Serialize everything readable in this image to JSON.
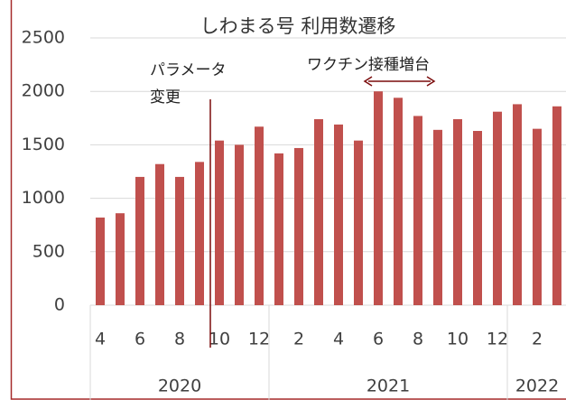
{
  "chart_data": {
    "type": "bar",
    "title": "しわまる号 利用数遷移",
    "categories": [
      "4",
      null,
      "6",
      null,
      "8",
      null,
      "10",
      null,
      "12",
      null,
      "2",
      null,
      "4",
      null,
      "6",
      null,
      "8",
      null,
      "10",
      null,
      "12",
      null,
      "2",
      null
    ],
    "values": [
      820,
      860,
      1200,
      1320,
      1200,
      1340,
      1540,
      1500,
      1670,
      1420,
      1470,
      1740,
      1690,
      1540,
      2000,
      1940,
      1770,
      1640,
      1740,
      1630,
      1810,
      1880,
      1650,
      1860
    ],
    "groups": [
      {
        "label": "2020",
        "count": 9
      },
      {
        "label": "2021",
        "count": 12
      },
      {
        "label": "2022",
        "count": 3
      }
    ],
    "color": "#c0504d",
    "ylim": [
      0,
      2500
    ],
    "yticks": [
      0,
      500,
      1000,
      1500,
      2000,
      2500
    ],
    "grid": true,
    "annotations": [
      [
        "パラメータ",
        "変更"
      ],
      [
        "ワクチン接種増台"
      ]
    ]
  }
}
